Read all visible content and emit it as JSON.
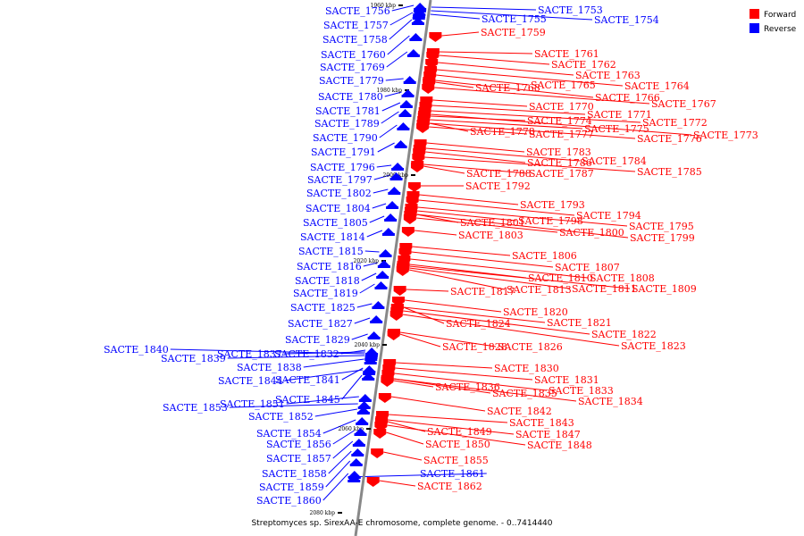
{
  "caption": "Streptomyces sp. SirexAA-E chromosome, complete genome. - 0..7414440",
  "legend": {
    "items": [
      {
        "label": "Forward",
        "color": "#ff0000"
      },
      {
        "label": "Reverse",
        "color": "#0000ff"
      }
    ]
  },
  "colors": {
    "forward": "#ff0000",
    "reverse": "#0000ff",
    "backbone": "#888888"
  },
  "ticks": [
    "1960 kbp",
    "1980 kbp",
    "2000 kbp",
    "2020 kbp",
    "2040 kbp",
    "2060 kbp",
    "2080 kbp"
  ],
  "reverse_genes": [
    "SACTE_1753",
    "SACTE_1754",
    "SACTE_1755",
    "SACTE_1756",
    "SACTE_1757",
    "SACTE_1758",
    "SACTE_1760",
    "SACTE_1769",
    "SACTE_1779",
    "SACTE_1780",
    "SACTE_1781",
    "SACTE_1789",
    "SACTE_1790",
    "SACTE_1791",
    "SACTE_1796",
    "SACTE_1797",
    "SACTE_1802",
    "SACTE_1804",
    "SACTE_1805",
    "SACTE_1814",
    "SACTE_1815",
    "SACTE_1816",
    "SACTE_1818",
    "SACTE_1819",
    "SACTE_1825",
    "SACTE_1827",
    "SACTE_1829",
    "SACTE_1832",
    "SACTE_1837",
    "SACTE_1838",
    "SACTE_1839",
    "SACTE_1840",
    "SACTE_1841",
    "SACTE_1844",
    "SACTE_1845",
    "SACTE_1851",
    "SACTE_1852",
    "SACTE_1853",
    "SACTE_1854",
    "SACTE_1856",
    "SACTE_1857",
    "SACTE_1858",
    "SACTE_1859",
    "SACTE_1860",
    "SACTE_1861"
  ],
  "forward_genes": [
    "SACTE_1759",
    "SACTE_1761",
    "SACTE_1762",
    "SACTE_1763",
    "SACTE_1764",
    "SACTE_1765",
    "SACTE_1766",
    "SACTE_1767",
    "SACTE_1768",
    "SACTE_1770",
    "SACTE_1771",
    "SACTE_1772",
    "SACTE_1773",
    "SACTE_1774",
    "SACTE_1775",
    "SACTE_1776",
    "SACTE_1777",
    "SACTE_1778",
    "SACTE_1783",
    "SACTE_1784",
    "SACTE_1785",
    "SACTE_1786",
    "SACTE_1787",
    "SACTE_1788",
    "SACTE_1792",
    "SACTE_1793",
    "SACTE_1794",
    "SACTE_1795",
    "SACTE_1798",
    "SACTE_1799",
    "SACTE_1800",
    "SACTE_1801",
    "SACTE_1803",
    "SACTE_1806",
    "SACTE_1807",
    "SACTE_1808",
    "SACTE_1809",
    "SACTE_1810",
    "SACTE_1811",
    "SACTE_1813",
    "SACTE_1817",
    "SACTE_1820",
    "SACTE_1821",
    "SACTE_1822",
    "SACTE_1823",
    "SACTE_1824",
    "SACTE_1826",
    "SACTE_1828",
    "SACTE_1830",
    "SACTE_1831",
    "SACTE_1833",
    "SACTE_1834",
    "SACTE_1835",
    "SACTE_1836",
    "SACTE_1842",
    "SACTE_1843",
    "SACTE_1847",
    "SACTE_1848",
    "SACTE_1849",
    "SACTE_1850",
    "SACTE_1855",
    "SACTE_1862"
  ]
}
